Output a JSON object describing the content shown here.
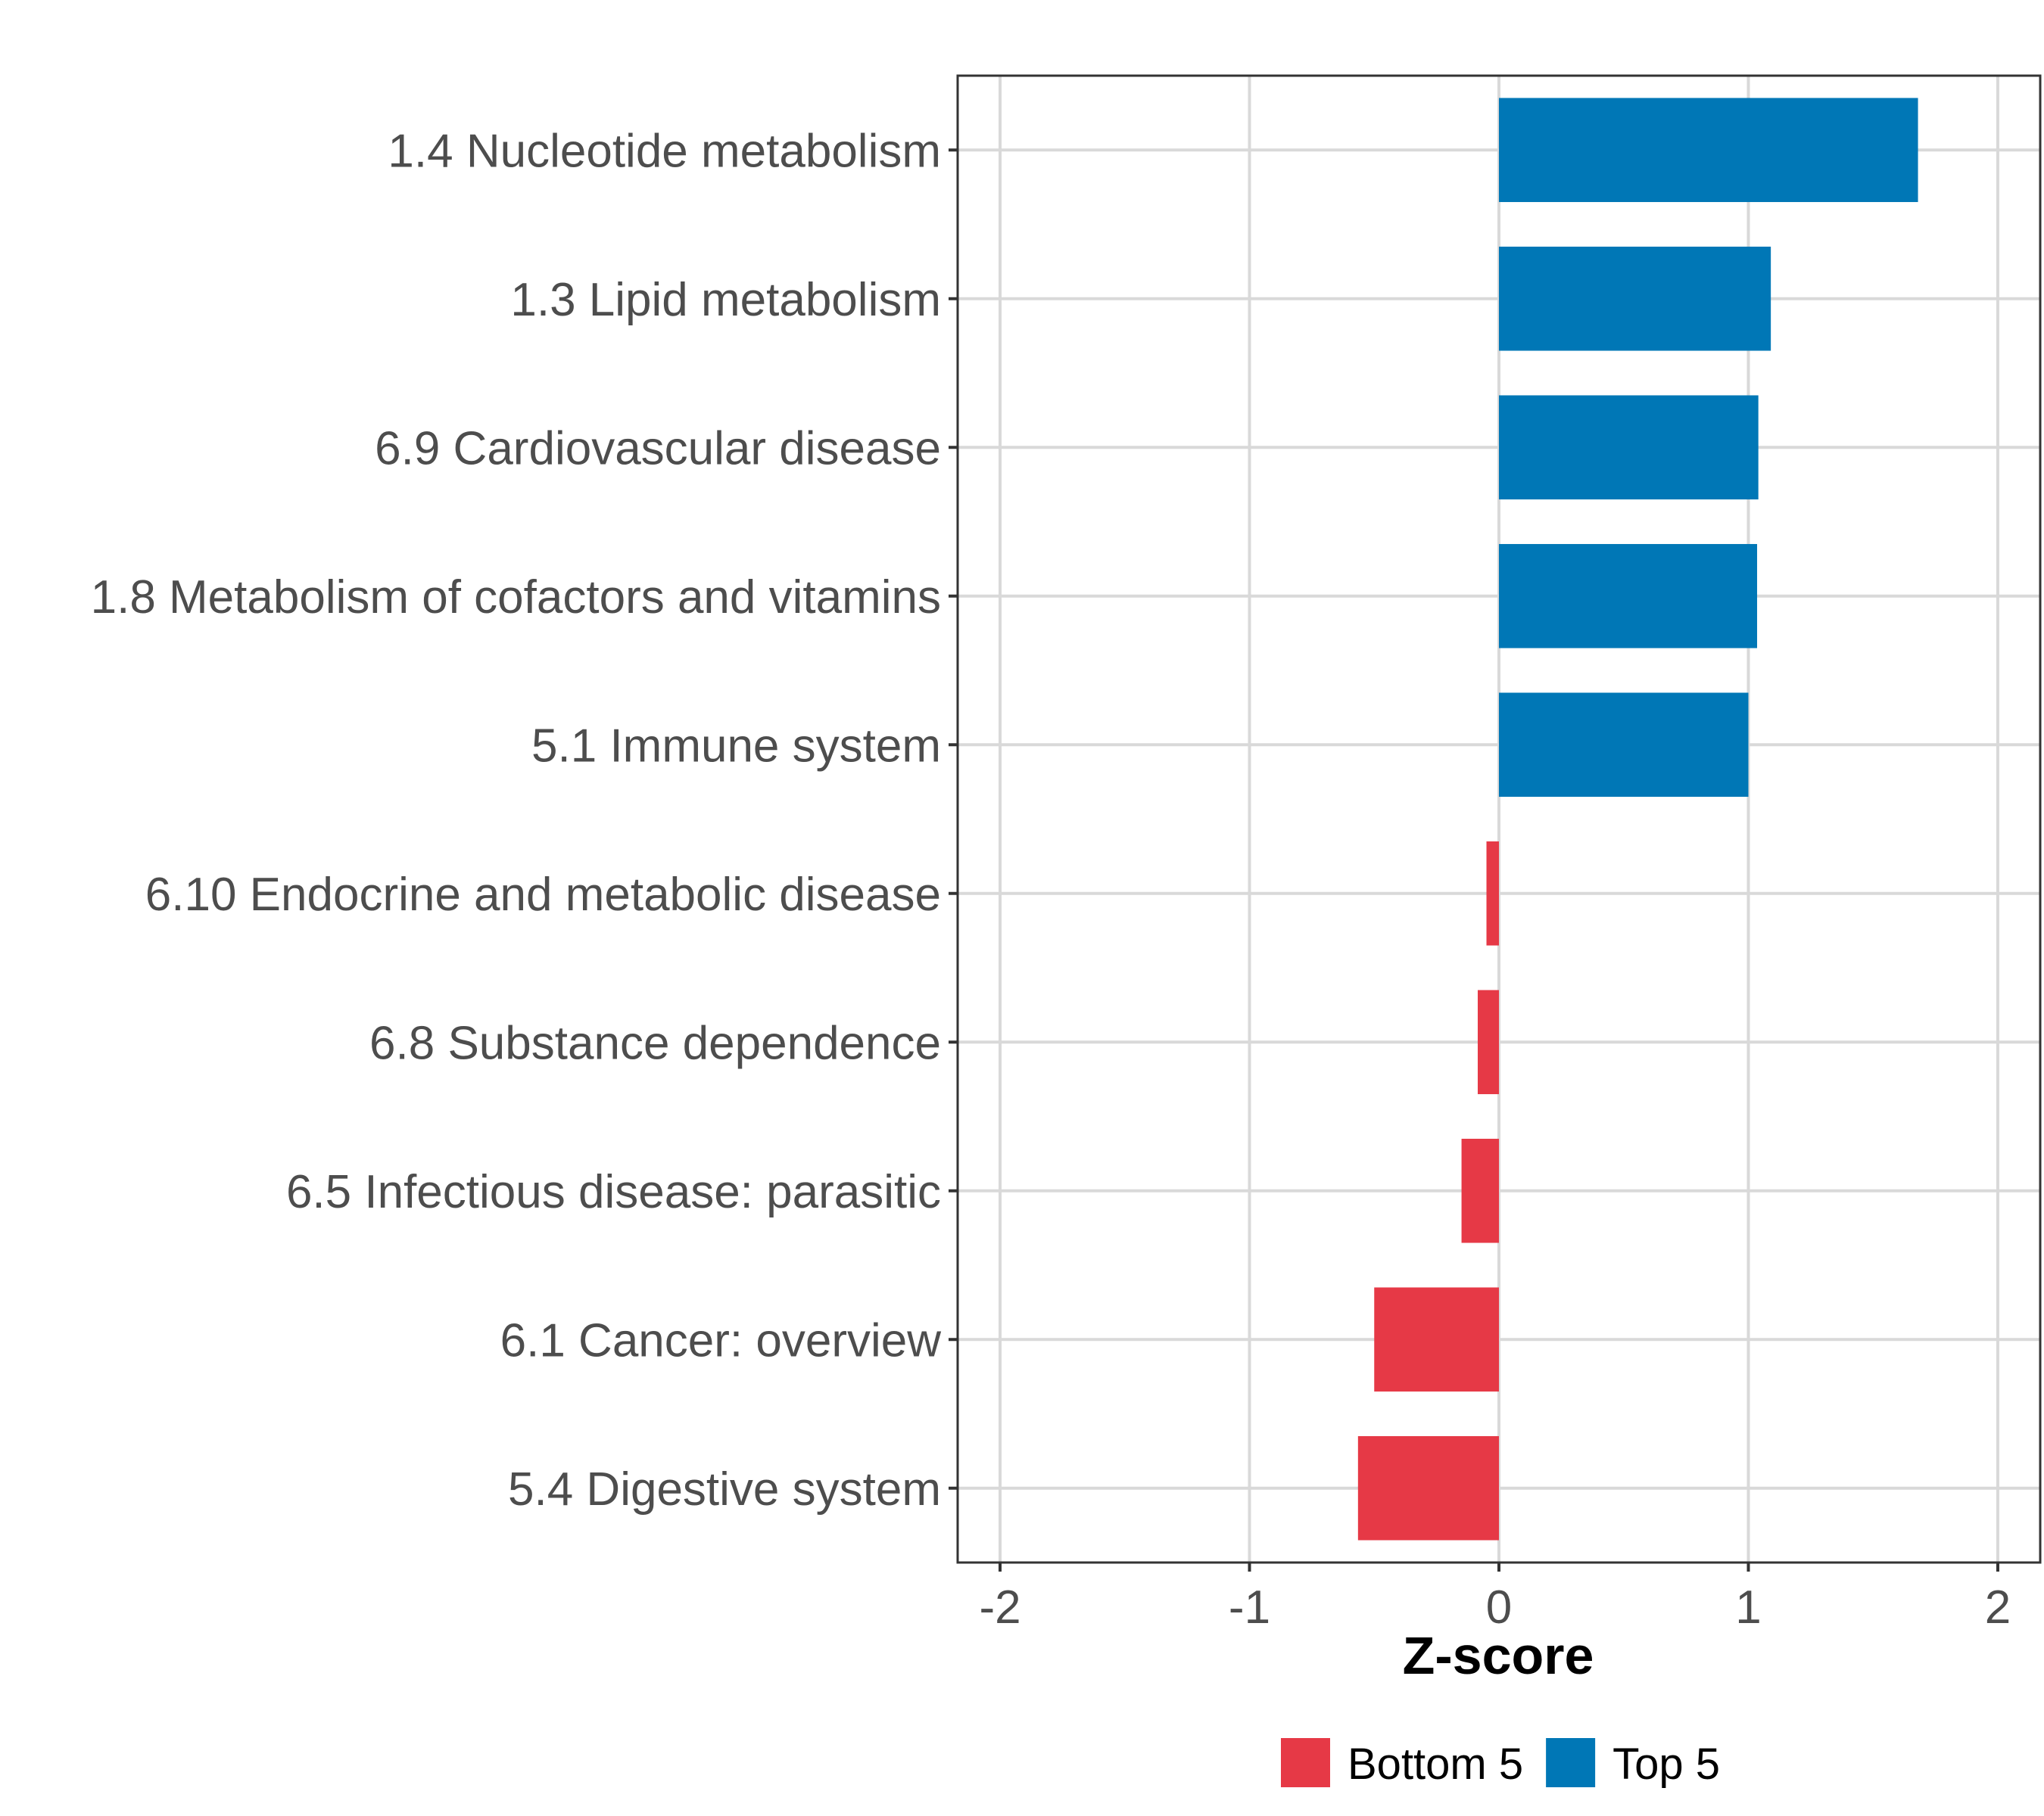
{
  "chart_data": {
    "type": "bar",
    "orientation": "horizontal",
    "categories": [
      "1.4 Nucleotide metabolism",
      "1.3 Lipid metabolism",
      "6.9 Cardiovascular disease",
      "1.8 Metabolism of cofactors and vitamins",
      "5.1 Immune system",
      "6.10 Endocrine and metabolic disease",
      "6.8 Substance dependence",
      "6.5 Infectious disease: parasitic",
      "6.1 Cancer: overview",
      "5.4 Digestive system"
    ],
    "values": [
      1.68,
      1.09,
      1.04,
      1.035,
      1.0,
      -0.05,
      -0.085,
      -0.15,
      -0.5,
      -0.565
    ],
    "groups": [
      "Top 5",
      "Top 5",
      "Top 5",
      "Top 5",
      "Top 5",
      "Bottom 5",
      "Bottom 5",
      "Bottom 5",
      "Bottom 5",
      "Bottom 5"
    ],
    "xlabel": "Z-score",
    "ylabel": "",
    "xlim": [
      -2.17,
      2.17
    ],
    "xticks": [
      -2,
      -1,
      0,
      1,
      2
    ],
    "xtick_labels": [
      "-2",
      "-1",
      "0",
      "1",
      "2"
    ],
    "grid": true,
    "legend": {
      "position": "bottom",
      "entries": [
        {
          "label": "Bottom 5",
          "color": "#E63946"
        },
        {
          "label": "Top 5",
          "color": "#0077B6"
        }
      ]
    },
    "colors": {
      "Top 5": "#0077B6",
      "Bottom 5": "#E63946"
    }
  }
}
